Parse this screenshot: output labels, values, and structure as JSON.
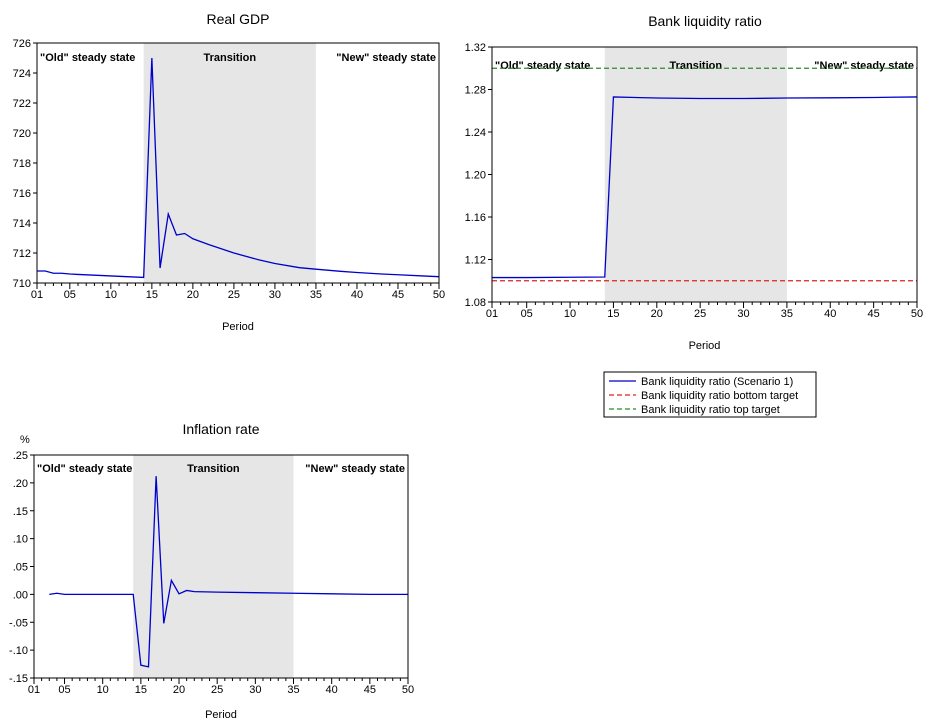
{
  "chart_data": [
    {
      "type": "line",
      "title": "Real GDP",
      "xlabel": "Period",
      "ylabel": "",
      "xlim": [
        1,
        50
      ],
      "ylim": [
        710,
        726
      ],
      "x_ticks": [
        "01",
        "05",
        "10",
        "15",
        "20",
        "25",
        "30",
        "35",
        "40",
        "45",
        "50"
      ],
      "y_ticks": [
        "710",
        "712",
        "714",
        "716",
        "718",
        "720",
        "722",
        "724",
        "726"
      ],
      "y_tick_values": [
        710,
        712,
        714,
        716,
        718,
        720,
        722,
        724,
        726
      ],
      "shaded_region": {
        "from": 14,
        "to": 35,
        "color": "#e6e6e6"
      },
      "region_labels": [
        "\"Old\" steady state",
        "Transition",
        "\"New\" steady state"
      ],
      "series": [
        {
          "color": "#0000cc",
          "x": [
            1,
            2,
            3,
            4,
            5,
            6,
            8,
            10,
            12,
            14,
            15,
            16,
            17,
            18,
            19,
            20,
            22,
            25,
            28,
            30,
            33,
            35,
            38,
            40,
            43,
            45,
            48,
            50
          ],
          "y": [
            710.8,
            710.8,
            710.65,
            710.65,
            710.6,
            710.57,
            710.52,
            710.47,
            710.42,
            710.37,
            725.0,
            711.0,
            714.6,
            713.2,
            713.3,
            712.95,
            712.55,
            712.0,
            711.55,
            711.3,
            711.02,
            710.92,
            710.78,
            710.7,
            710.6,
            710.55,
            710.47,
            710.42
          ]
        }
      ]
    },
    {
      "type": "line",
      "title": "Bank liquidity ratio",
      "xlabel": "Period",
      "ylabel": "",
      "xlim": [
        1,
        50
      ],
      "ylim": [
        1.08,
        1.32
      ],
      "x_ticks": [
        "01",
        "05",
        "10",
        "15",
        "20",
        "25",
        "30",
        "35",
        "40",
        "45",
        "50"
      ],
      "y_ticks": [
        "1.08",
        "1.12",
        "1.16",
        "1.20",
        "1.24",
        "1.28",
        "1.32"
      ],
      "y_tick_values": [
        1.08,
        1.12,
        1.16,
        1.2,
        1.24,
        1.28,
        1.32
      ],
      "shaded_region": {
        "from": 14,
        "to": 35,
        "color": "#e6e6e6"
      },
      "region_labels": [
        "\"Old\" steady state",
        "Transition",
        "\"New\" steady state"
      ],
      "series": [
        {
          "name": "Bank liquidity ratio (Scenario 1)",
          "color": "#0000cc",
          "dash": "",
          "x": [
            1,
            5,
            10,
            14,
            15,
            20,
            25,
            30,
            35,
            40,
            45,
            50
          ],
          "y": [
            1.103,
            1.103,
            1.1033,
            1.1035,
            1.273,
            1.272,
            1.2715,
            1.2715,
            1.272,
            1.2722,
            1.2725,
            1.273
          ]
        },
        {
          "name": "Bank liquidity ratio bottom target",
          "color": "#e02020",
          "dash": "5,3",
          "x": [
            1,
            50
          ],
          "y": [
            1.1,
            1.1
          ]
        },
        {
          "name": "Bank liquidity ratio top target",
          "color": "#2a8a2a",
          "dash": "5,3",
          "x": [
            1,
            50
          ],
          "y": [
            1.3,
            1.3
          ]
        }
      ]
    },
    {
      "type": "line",
      "title": "Inflation rate",
      "xlabel": "Period",
      "ylabel": "%",
      "xlim": [
        1,
        50
      ],
      "ylim": [
        -0.15,
        0.25
      ],
      "x_ticks": [
        "01",
        "05",
        "10",
        "15",
        "20",
        "25",
        "30",
        "35",
        "40",
        "45",
        "50"
      ],
      "y_ticks": [
        "-.15",
        "-.10",
        "-.05",
        ".00",
        ".05",
        ".10",
        ".15",
        ".20",
        ".25"
      ],
      "y_tick_values": [
        -0.15,
        -0.1,
        -0.05,
        0.0,
        0.05,
        0.1,
        0.15,
        0.2,
        0.25
      ],
      "shaded_region": {
        "from": 14,
        "to": 35,
        "color": "#e6e6e6"
      },
      "region_labels": [
        "\"Old\" steady state",
        "Transition",
        "\"New\" steady state"
      ],
      "series": [
        {
          "color": "#0000cc",
          "x": [
            3,
            4,
            5,
            6,
            8,
            10,
            12,
            14,
            15,
            16,
            17,
            18,
            19,
            20,
            21,
            22,
            25,
            30,
            35,
            40,
            45,
            50
          ],
          "y": [
            0.0,
            0.002,
            0.0,
            0.0,
            0.0,
            0.0,
            0.0,
            0.0,
            -0.127,
            -0.13,
            0.212,
            -0.052,
            0.025,
            0.001,
            0.007,
            0.005,
            0.004,
            0.003,
            0.002,
            0.001,
            0.0,
            0.0
          ]
        }
      ]
    }
  ]
}
